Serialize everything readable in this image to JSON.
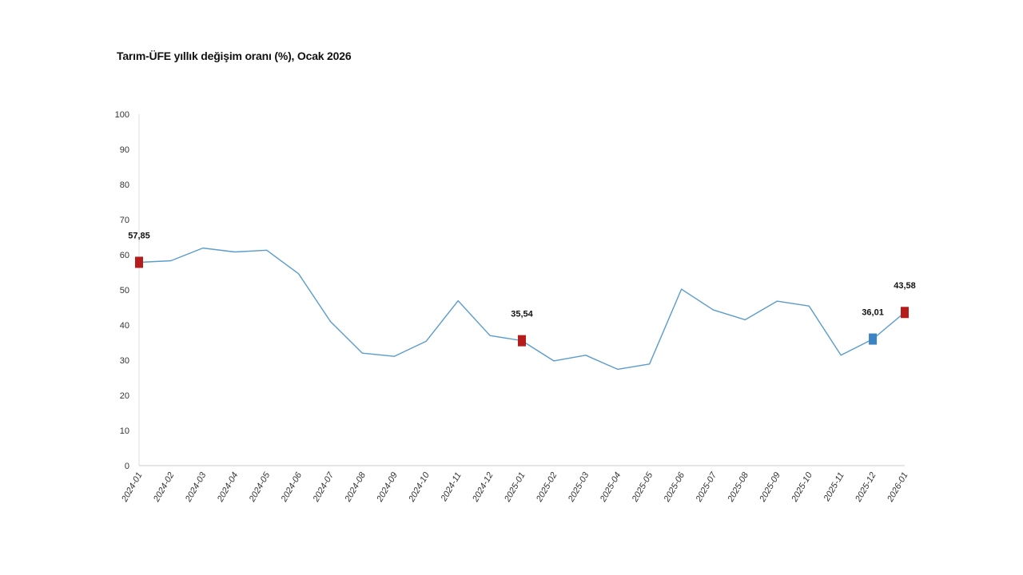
{
  "chart_data": {
    "type": "line",
    "title": "Tarım-ÜFE yıllık değişim oranı (%), Ocak 2026",
    "xlabel": "",
    "ylabel": "",
    "ylim": [
      0,
      100
    ],
    "yticks": [
      "0",
      "10",
      "20",
      "30",
      "40",
      "50",
      "60",
      "70",
      "80",
      "90",
      "100"
    ],
    "categories": [
      "2024-01",
      "2024-02",
      "2024-03",
      "2024-04",
      "2024-05",
      "2024-06",
      "2024-07",
      "2024-08",
      "2024-09",
      "2024-10",
      "2024-11",
      "2024-12",
      "2025-01",
      "2025-02",
      "2025-03",
      "2025-04",
      "2025-05",
      "2025-06",
      "2025-07",
      "2025-08",
      "2025-09",
      "2025-10",
      "2025-11",
      "2025-12",
      "2026-01"
    ],
    "series": [
      {
        "values": [
          57.85,
          58.3,
          61.9,
          60.8,
          61.3,
          54.6,
          41.0,
          32.0,
          31.1,
          35.4,
          46.9,
          37.0,
          35.54,
          29.8,
          31.4,
          27.4,
          28.9,
          50.2,
          44.3,
          41.5,
          46.8,
          45.4,
          31.4,
          36.01,
          43.58
        ],
        "color": "#5a9ccc"
      }
    ],
    "annotations": [
      {
        "category": "2024-01",
        "value": 57.85,
        "label": "57,85",
        "color": "#b71c1c"
      },
      {
        "category": "2025-01",
        "value": 35.54,
        "label": "35,54",
        "color": "#b71c1c"
      },
      {
        "category": "2025-12",
        "value": 36.01,
        "label": "36,01",
        "color": "#3a84c4"
      },
      {
        "category": "2026-01",
        "value": 43.58,
        "label": "43,58",
        "color": "#b71c1c"
      }
    ],
    "grid": false,
    "legend": "none"
  }
}
